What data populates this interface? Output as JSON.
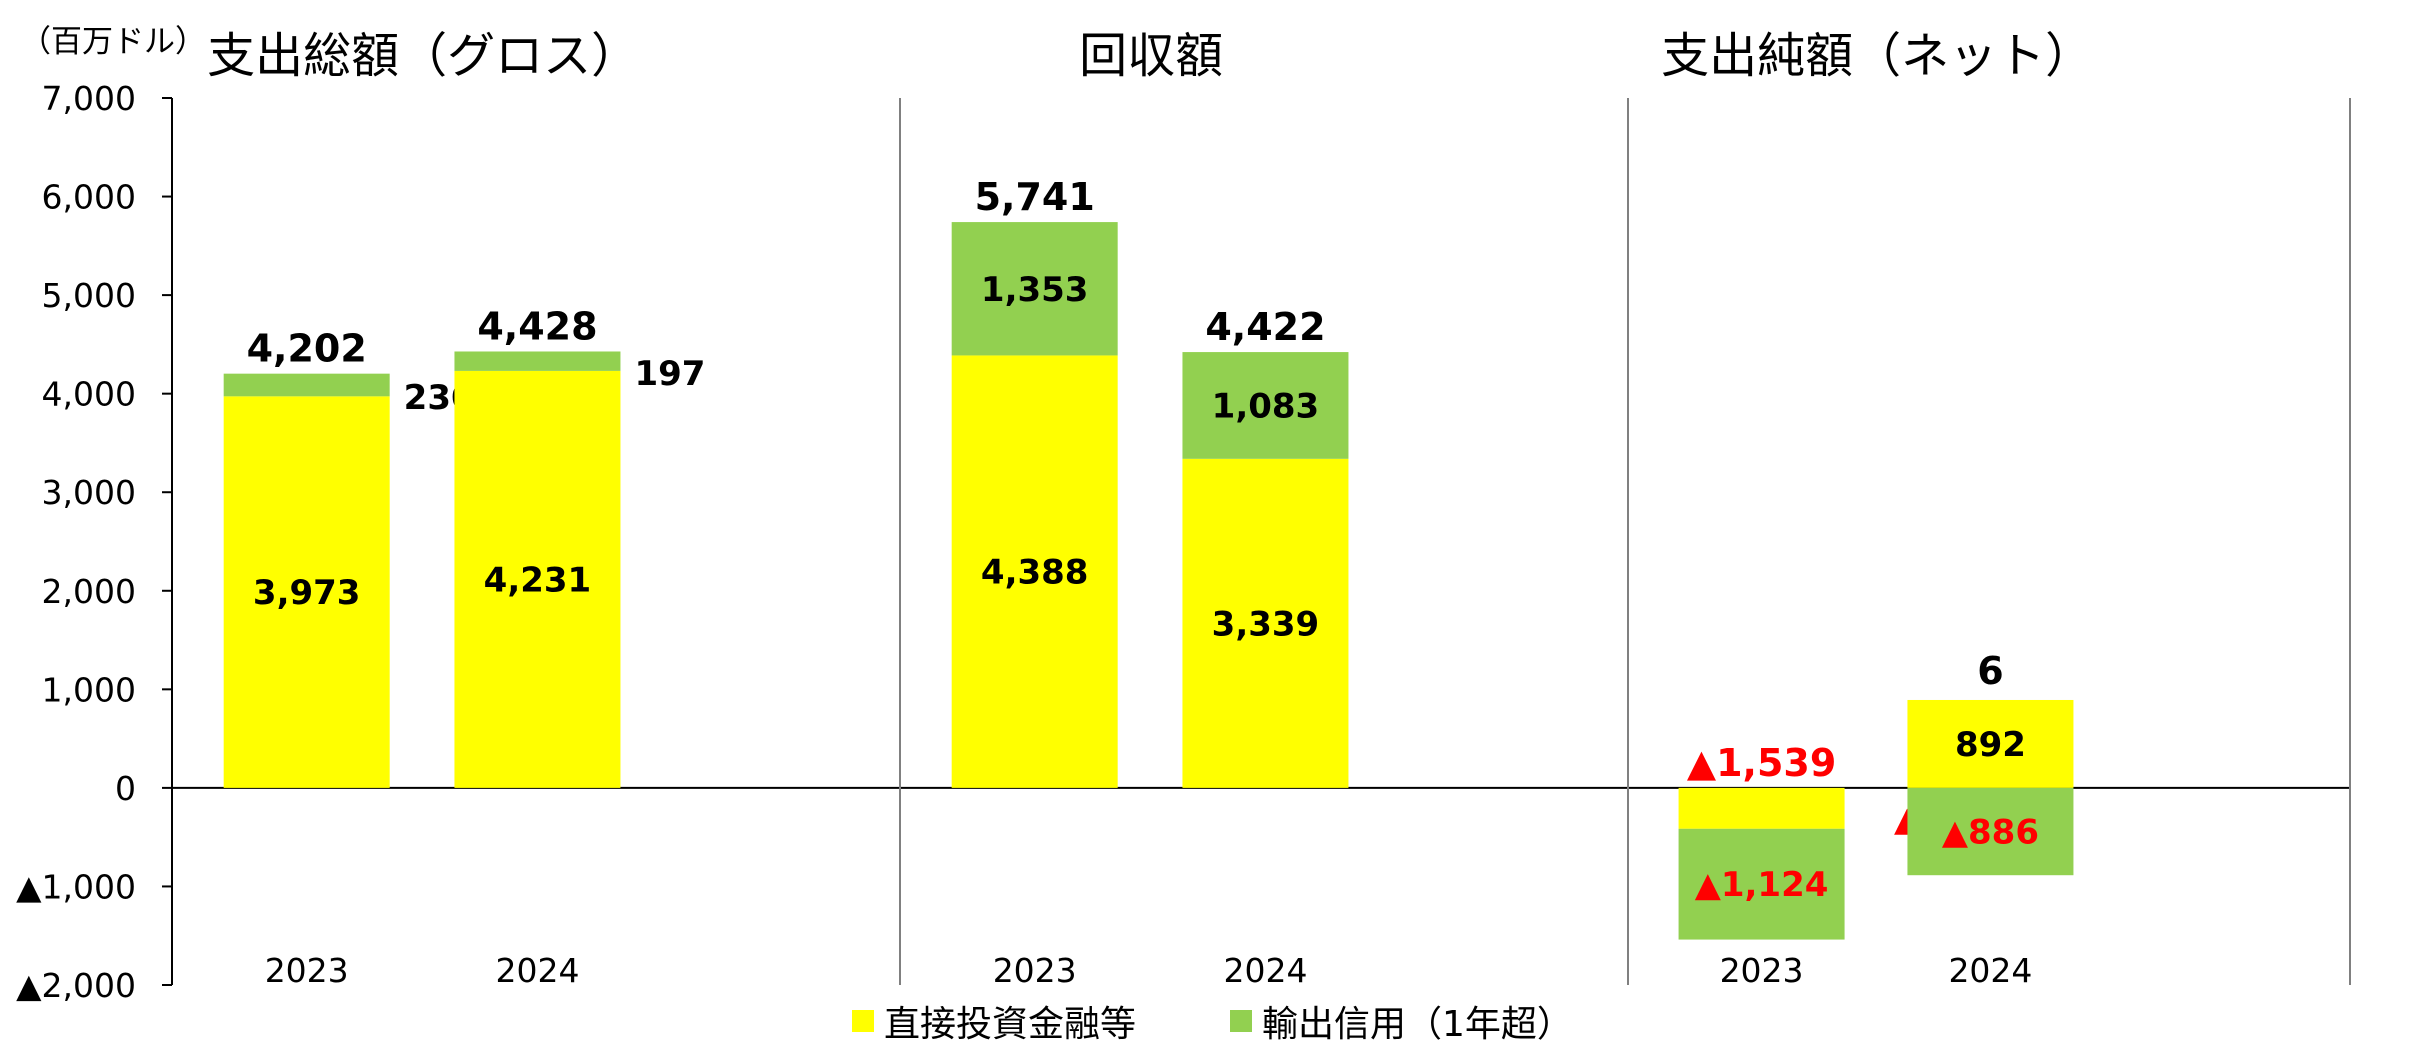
{
  "chart_data": {
    "type": "bar",
    "stacked": true,
    "unit_label": "（百万ドル）",
    "ylim": [
      -2000,
      7000
    ],
    "yticks": [
      7000,
      6000,
      5000,
      4000,
      3000,
      2000,
      1000,
      0,
      -1000,
      -2000
    ],
    "ytick_labels": [
      "7,000",
      "6,000",
      "5,000",
      "4,000",
      "3,000",
      "2,000",
      "1,000",
      "0",
      "▲1,000",
      "▲2,000"
    ],
    "grid": false,
    "legend_position": "bottom",
    "colors": {
      "direct": "#ffff00",
      "export": "#92d050",
      "negative_text": "#ff0000",
      "divider": "#808080",
      "axis": "#000000"
    },
    "series": [
      {
        "key": "direct",
        "name": "直接投資金融等"
      },
      {
        "key": "export",
        "name": "輸出信用（1年超）"
      }
    ],
    "panels": [
      {
        "title": "支出総額（グロス）",
        "categories": [
          "2023",
          "2024"
        ],
        "direct": [
          3973,
          4231
        ],
        "export": [
          230,
          197
        ],
        "direct_labels": [
          "3,973",
          "4,231"
        ],
        "export_labels": [
          "230",
          "197"
        ],
        "export_label_inside": [
          false,
          false
        ],
        "totals": [
          4202,
          4428
        ],
        "total_labels": [
          "4,202",
          "4,428"
        ]
      },
      {
        "title": "回収額",
        "categories": [
          "2023",
          "2024"
        ],
        "direct": [
          4388,
          3339
        ],
        "export": [
          1353,
          1083
        ],
        "direct_labels": [
          "4,388",
          "3,339"
        ],
        "export_labels": [
          "1,353",
          "1,083"
        ],
        "export_label_inside": [
          true,
          true
        ],
        "totals": [
          5741,
          4422
        ],
        "total_labels": [
          "5,741",
          "4,422"
        ]
      },
      {
        "title": "支出純額（ネット）",
        "categories": [
          "2023",
          "2024"
        ],
        "direct": [
          -415,
          892
        ],
        "export": [
          -1124,
          -886
        ],
        "direct_labels": [
          "▲415",
          "892"
        ],
        "export_labels": [
          "▲1,124",
          "▲886"
        ],
        "totals": [
          -1539,
          6
        ],
        "total_labels": [
          "▲1,539",
          "6"
        ]
      }
    ]
  }
}
